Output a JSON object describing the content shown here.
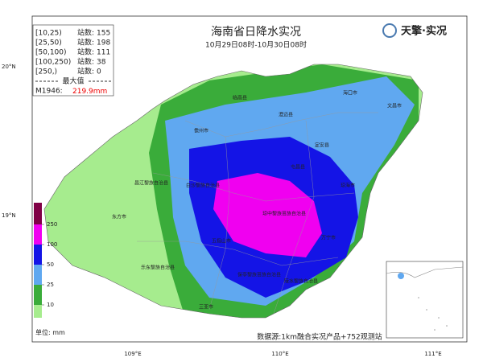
{
  "title": "海南省日降水实况",
  "subtitle": "10月29日08时-10月30日08时",
  "logo": "天擎·实况",
  "stations": {
    "label": "站数:",
    "rows": [
      {
        "range": "[10,25)",
        "count": 155
      },
      {
        "range": "[25,50)",
        "count": 198
      },
      {
        "range": "[50,100)",
        "count": 111
      },
      {
        "range": "[100,250)",
        "count": 38
      },
      {
        "range": "[250,)",
        "count": 0
      }
    ],
    "max": {
      "title": "最大值",
      "station": "M1946:",
      "value": 219.9,
      "unit": "mm"
    }
  },
  "scale": {
    "unit_label": "单位:",
    "unit": "mm",
    "levels": [
      10,
      25,
      50,
      100,
      250
    ],
    "colors": [
      "#a6ec8e",
      "#3aac3a",
      "#60a8f0",
      "#1414e6",
      "#f000f0",
      "#800046"
    ]
  },
  "axes": {
    "lat": [
      "20°N",
      "19°N"
    ],
    "lon": [
      "109°E",
      "110°E",
      "111°E"
    ]
  },
  "places": [
    "临高县",
    "澄迈县",
    "海口市",
    "文昌市",
    "儋州市",
    "定安县",
    "屯昌县",
    "昌江黎族自治县",
    "白沙黎族自治县",
    "琼海市",
    "琼中黎族苗族自治县",
    "东方市",
    "五指山市",
    "万宁市",
    "乐东黎族自治县",
    "保亭黎族苗族自治县",
    "陵水黎族自治县",
    "三亚市"
  ],
  "source": "数据源:1km融合实况产品+752观测站"
}
